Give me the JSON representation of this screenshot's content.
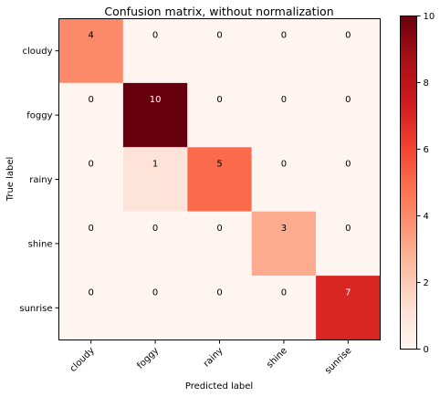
{
  "chart_data": {
    "type": "heatmap",
    "title": "Confusion matrix, without normalization",
    "xlabel": "Predicted label",
    "ylabel": "True label",
    "x_categories": [
      "cloudy",
      "foggy",
      "rainy",
      "shine",
      "sunrise"
    ],
    "y_categories": [
      "cloudy",
      "foggy",
      "rainy",
      "shine",
      "sunrise"
    ],
    "values": [
      [
        4,
        0,
        0,
        0,
        0
      ],
      [
        0,
        10,
        0,
        0,
        0
      ],
      [
        0,
        1,
        5,
        0,
        0
      ],
      [
        0,
        0,
        0,
        3,
        0
      ],
      [
        0,
        0,
        0,
        0,
        7
      ]
    ],
    "colormap": "Reds",
    "colorbar": {
      "ticks": [
        0,
        2,
        4,
        6,
        8,
        10
      ],
      "range": [
        0,
        10
      ]
    },
    "text_threshold": 5,
    "text_colors": {
      "dark": "#000000",
      "light": "#ffffff"
    }
  }
}
